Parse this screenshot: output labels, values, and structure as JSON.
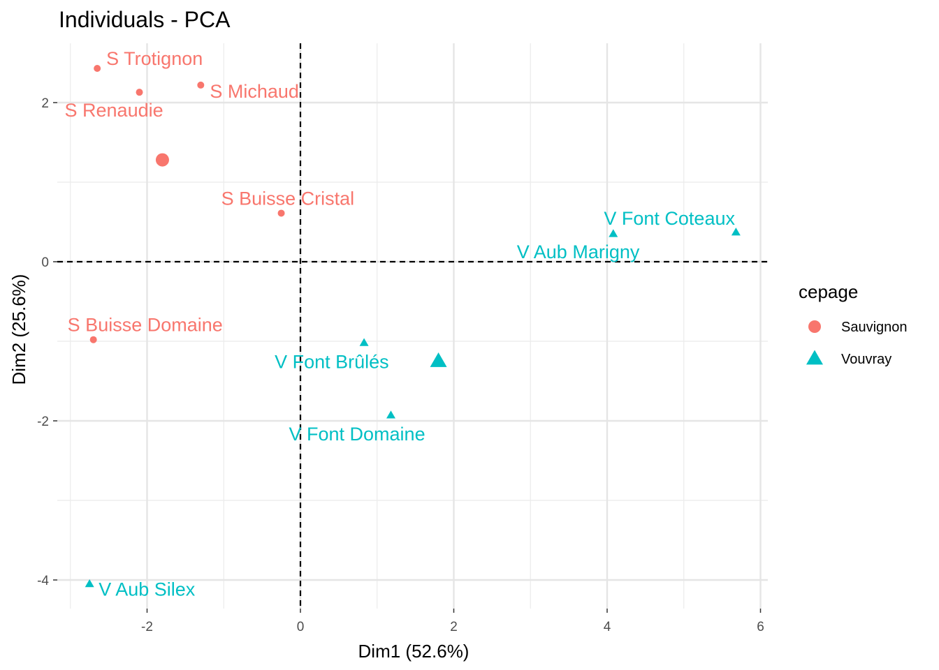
{
  "chart_data": {
    "type": "scatter",
    "title": "Individuals - PCA",
    "xlabel": "Dim1 (52.6%)",
    "ylabel": "Dim2 (25.6%)",
    "xlim": [
      -3.0,
      6.1
    ],
    "ylim": [
      -4.35,
      2.75
    ],
    "x_ticks": [
      -2,
      0,
      2,
      4,
      6
    ],
    "y_ticks": [
      -4,
      -2,
      0,
      2
    ],
    "x_tick_labels": [
      "-2",
      "0",
      "2",
      "4",
      "6"
    ],
    "y_tick_labels": [
      "-4",
      "-2",
      "0",
      "2"
    ],
    "grid": true,
    "reference_lines": {
      "x": 0,
      "y": 0,
      "style": "dashed"
    },
    "legend": {
      "title": "cepage",
      "position": "right",
      "entries": [
        {
          "name": "Sauvignon",
          "color": "#F8766D",
          "shape": "circle"
        },
        {
          "name": "Vouvray",
          "color": "#00BFC4",
          "shape": "triangle"
        }
      ]
    },
    "series": [
      {
        "name": "Sauvignon",
        "color": "#F8766D",
        "shape": "circle",
        "points": [
          {
            "label": "S Michaud",
            "x": -1.3,
            "y": 2.22
          },
          {
            "label": "S Renaudie",
            "x": -2.1,
            "y": 2.13
          },
          {
            "label": "S Trotignon",
            "x": -2.65,
            "y": 2.43
          },
          {
            "label": "S Buisse Domaine",
            "x": -2.7,
            "y": -0.98
          },
          {
            "label": "S Buisse Cristal",
            "x": -0.25,
            "y": 0.61
          }
        ],
        "centroid": {
          "x": -1.8,
          "y": 1.28
        }
      },
      {
        "name": "Vouvray",
        "color": "#00BFC4",
        "shape": "triangle",
        "points": [
          {
            "label": "V Aub Silex",
            "x": -2.75,
            "y": -4.05
          },
          {
            "label": "V Aub Marigny",
            "x": 4.08,
            "y": 0.35
          },
          {
            "label": "V Font Domaine",
            "x": 1.18,
            "y": -1.93
          },
          {
            "label": "V Font Brûlés",
            "x": 0.83,
            "y": -1.02
          },
          {
            "label": "V Font Coteaux",
            "x": 5.68,
            "y": 0.37
          }
        ],
        "centroid": {
          "x": 1.8,
          "y": -1.25
        }
      }
    ]
  }
}
